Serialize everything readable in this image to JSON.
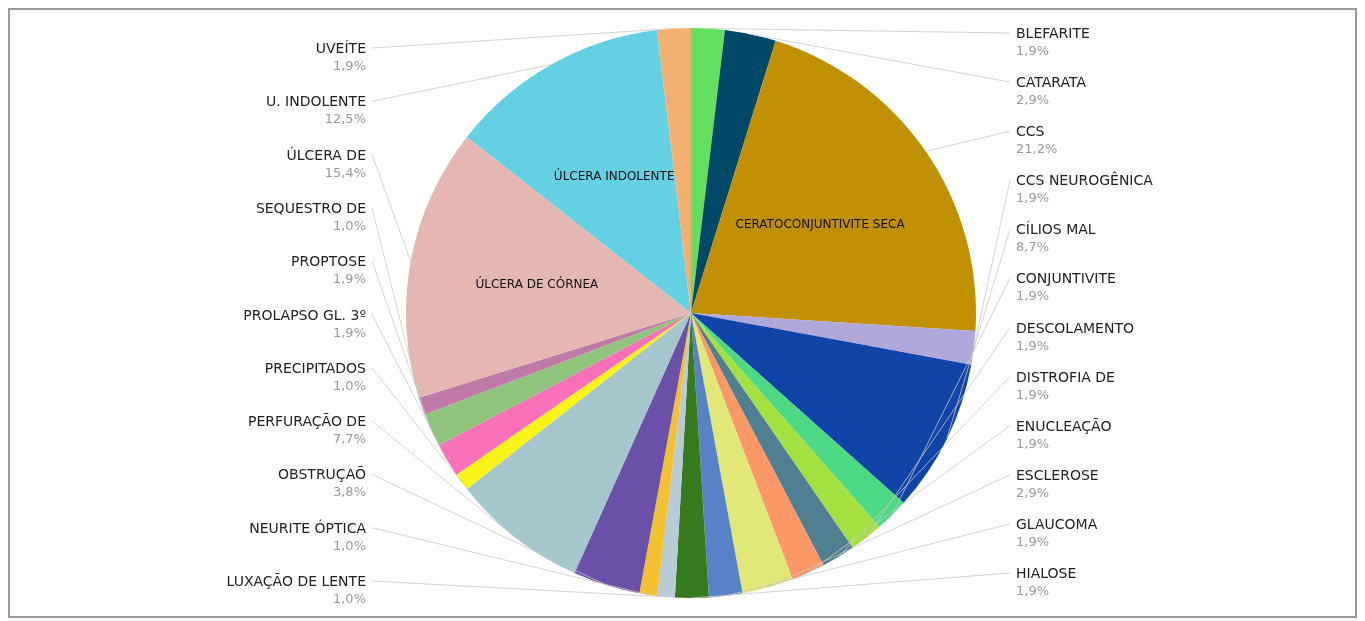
{
  "chart_data": {
    "type": "pie",
    "categories": [
      "BLEFARITE",
      "CATARATA",
      "CCS",
      "CCS NEUROGÊNICA",
      "CÍLIOS MAL",
      "CONJUNTIVITE",
      "DESCOLAMENTO",
      "DISTROFIA DE",
      "ENUCLEAÇÃO",
      "ESCLEROSE",
      "GLAUCOMA",
      "HIALOSE",
      "LUXAÇÃO DE LENTE",
      "NEURITE ÓPTICA",
      "OBSTRUÇAÕ",
      "PERFURAÇÃO DE",
      "PRECIPITADOS",
      "PROLAPSO GL. 3º",
      "PROPTOSE",
      "SEQUESTRO DE",
      "ÚLCERA DE",
      "U. INDOLENTE",
      "UVEÍTE"
    ],
    "values": [
      1.9,
      2.9,
      21.2,
      1.9,
      8.7,
      1.9,
      1.9,
      1.9,
      1.9,
      2.9,
      1.9,
      1.9,
      1.0,
      1.0,
      3.8,
      7.7,
      1.0,
      1.9,
      1.9,
      1.0,
      15.4,
      12.5,
      1.9
    ],
    "value_labels": [
      "1,9%",
      "2,9%",
      "21,2%",
      "1,9%",
      "8,7%",
      "1,9%",
      "1,9%",
      "1,9%",
      "1,9%",
      "2,9%",
      "1,9%",
      "1,9%",
      "1,0%",
      "1,0%",
      "3,8%",
      "7,7%",
      "1,0%",
      "1,9%",
      "1,9%",
      "1,0%",
      "15,4%",
      "12,5%",
      "1,9%"
    ],
    "colors": [
      "#64e060",
      "#004868",
      "#c09000",
      "#b0a8d8",
      "#1044a8",
      "#4cd884",
      "#a4e040",
      "#4f7f90",
      "#fc9868",
      "#e2e878",
      "#5882c8",
      "#367a1e",
      "#b8ccd8",
      "#f2c030",
      "#6a50a8",
      "#a4c6cc",
      "#f8f418",
      "#f870b8",
      "#90c47c",
      "#c07aa8",
      "#e4b8b0",
      "#64d0e4",
      "#f4b070"
    ],
    "annotations": [
      {
        "text": "CERATOCONJUNTIVITE SECA",
        "x": "CCS"
      },
      {
        "text": "ÚLCERA DE CÓRNEA",
        "x": "ÚLCERA DE"
      },
      {
        "text": "ÚLCERA INDOLENTE",
        "x": "U. INDOLENTE"
      }
    ]
  }
}
